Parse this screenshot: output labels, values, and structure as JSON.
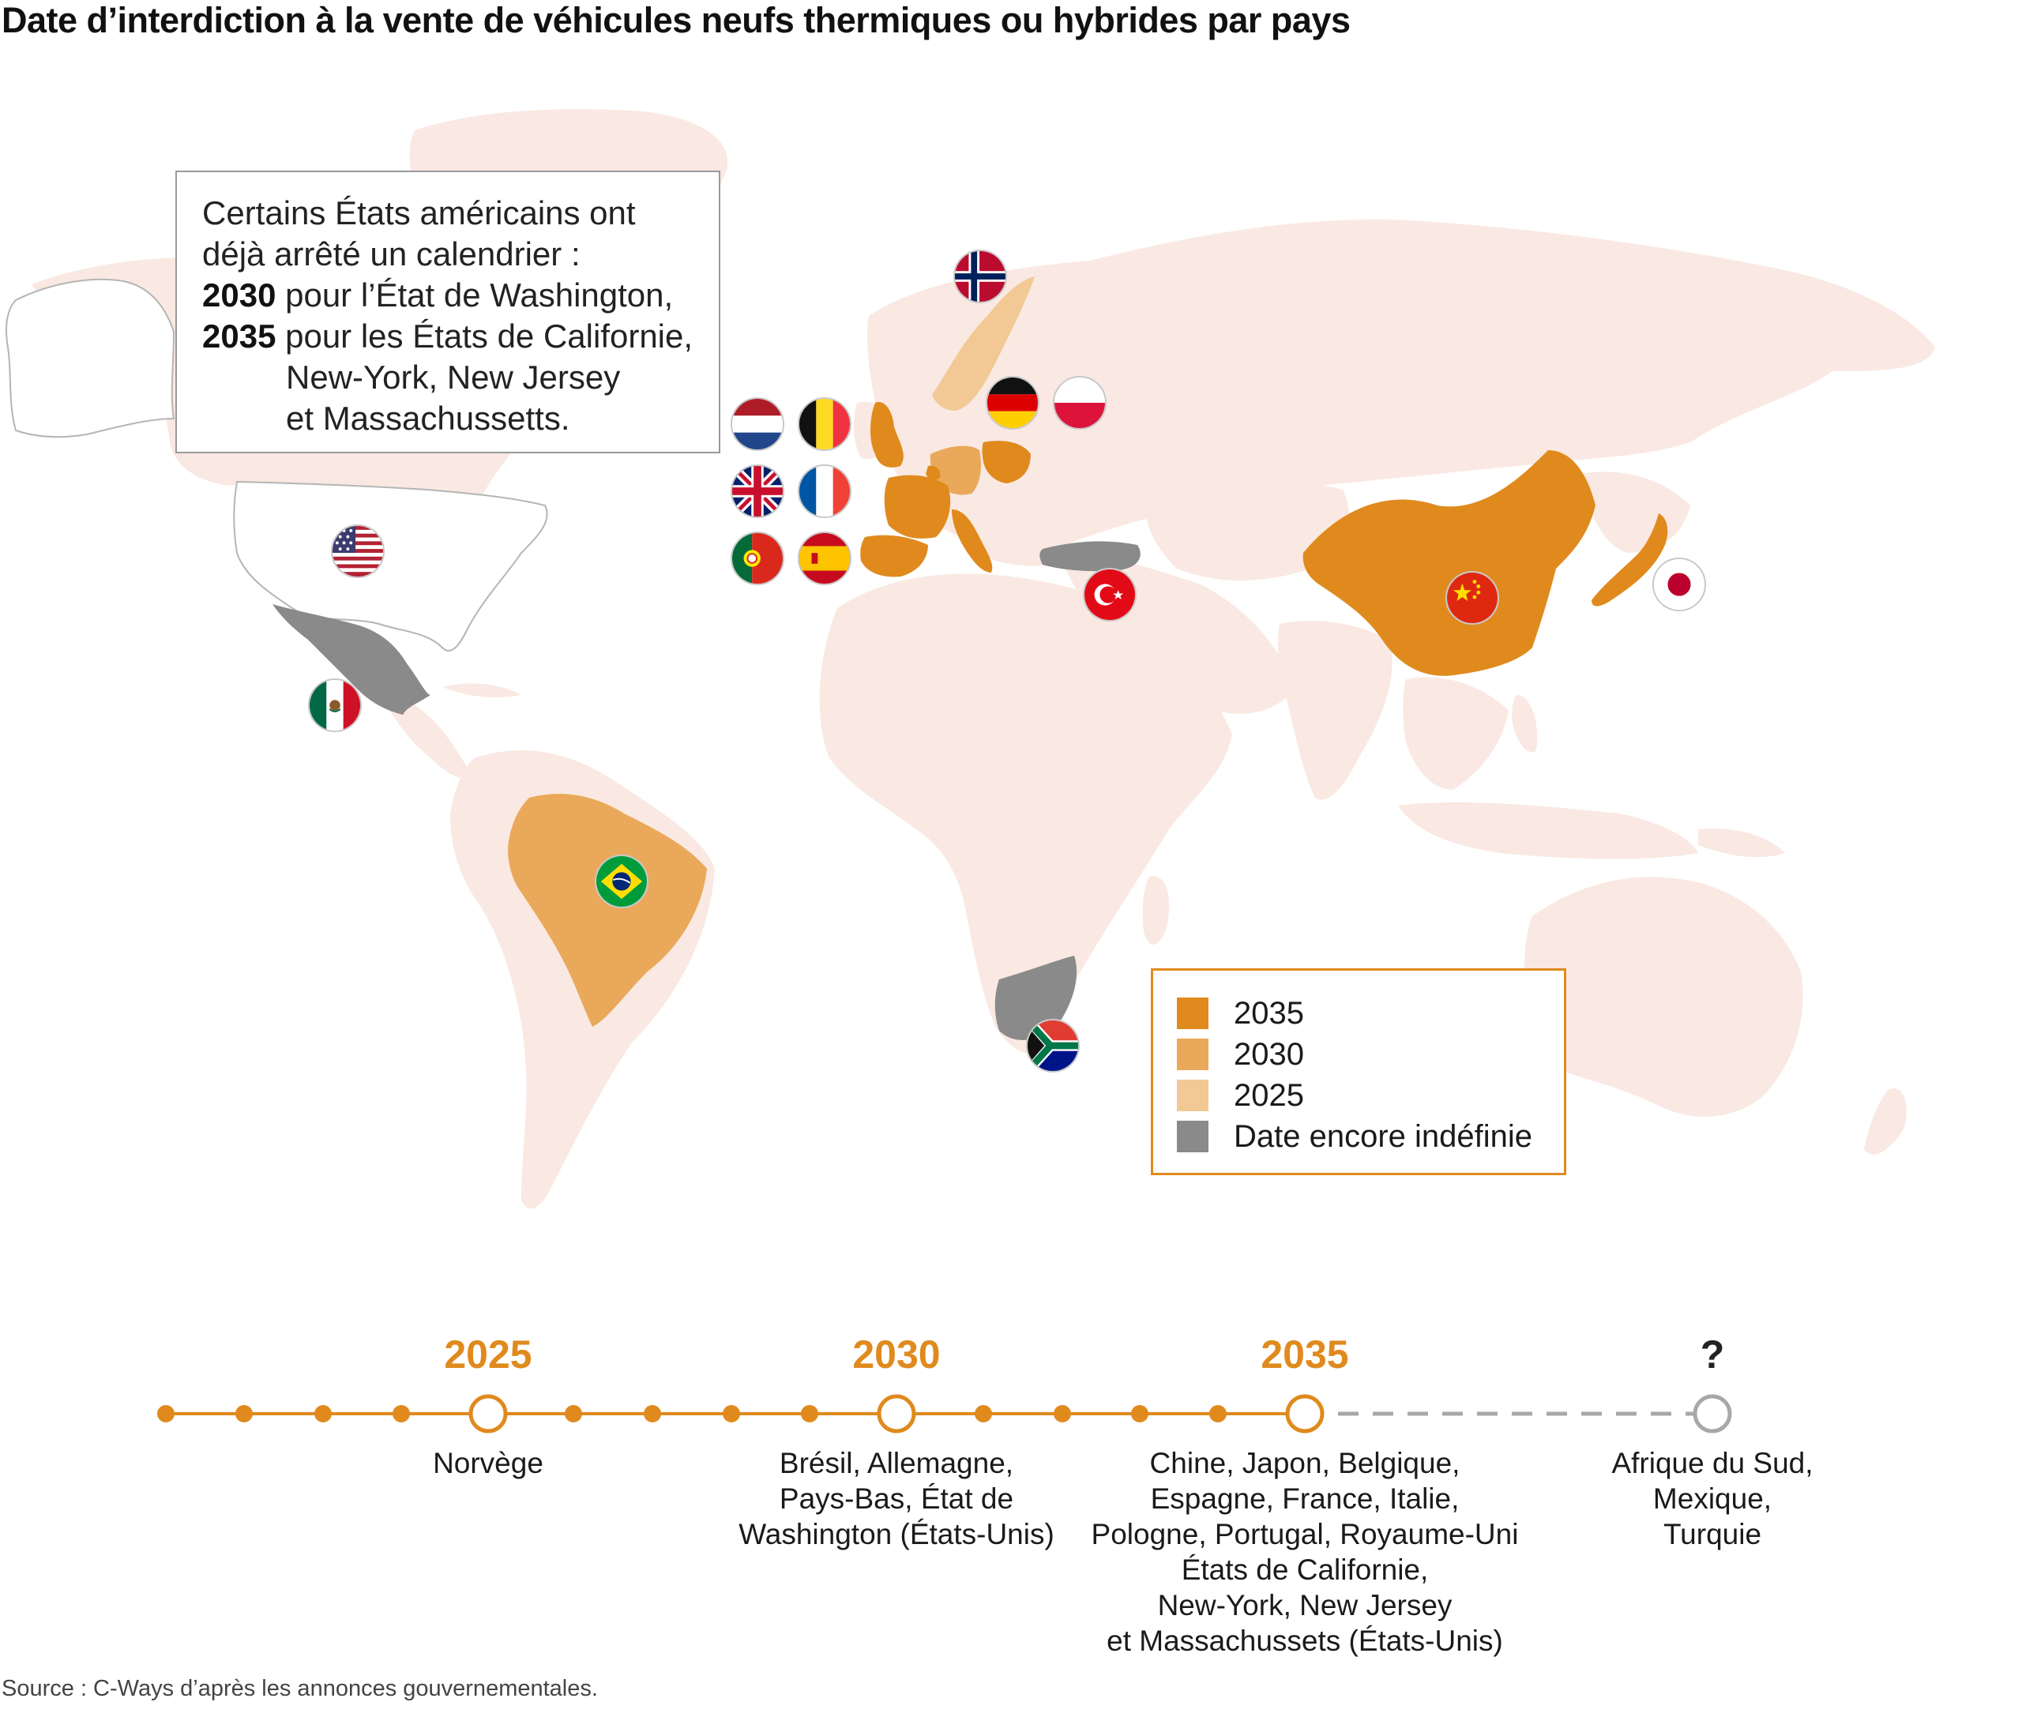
{
  "title": "Date d’interdiction à la vente de véhicules neufs thermiques ou hybrides par pays",
  "colors": {
    "y2035": "#e08a1e",
    "y2030": "#eaa85a",
    "y2025": "#f2c894",
    "undefined": "#8a8a8a",
    "land": "#f9e9e2",
    "usa": "#ffffff"
  },
  "note": {
    "line1": "Certains États américains ont",
    "line2": "déjà arrêté un calendrier :",
    "line3_year": "2030",
    "line3_text": " pour l’État de Washington,",
    "line4_year": "2035",
    "line4_text": " pour les États de Californie,",
    "line5": "New-York, New Jersey",
    "line6": "et Massachussetts."
  },
  "legend": [
    {
      "label": "2035",
      "color": "#e08a1e",
      "bold": true
    },
    {
      "label": "2030",
      "color": "#eaa85a",
      "bold": true
    },
    {
      "label": "2025",
      "color": "#f2c894",
      "bold": true
    },
    {
      "label": "Date encore indéfinie",
      "color": "#8a8a8a",
      "bold": false
    }
  ],
  "flags": [
    "norway-flag",
    "netherlands-flag",
    "belgium-flag",
    "germany-flag",
    "poland-flag",
    "uk-flag",
    "france-flag",
    "portugal-flag",
    "spain-flag",
    "usa-flag",
    "mexico-flag",
    "turkey-flag",
    "china-flag",
    "japan-flag",
    "brazil-flag",
    "south-africa-flag"
  ],
  "timeline": {
    "years": [
      "2025",
      "2030",
      "2035",
      "?"
    ],
    "labels": {
      "y2025": [
        "Norvège"
      ],
      "y2030": [
        "Brésil, Allemagne,",
        "Pays-Bas, État de",
        "Washington (États-Unis)"
      ],
      "y2035": [
        "Chine, Japon, Belgique,",
        "Espagne, France, Italie,",
        "Pologne, Portugal, Royaume-Uni",
        "États de Californie,",
        "New-York, New Jersey",
        "et Massachussets (États-Unis)"
      ],
      "unknown": [
        "Afrique du Sud,",
        "Mexique,",
        "Turquie"
      ]
    }
  },
  "source": "Source : C-Ways d’après les annonces gouvernementales."
}
